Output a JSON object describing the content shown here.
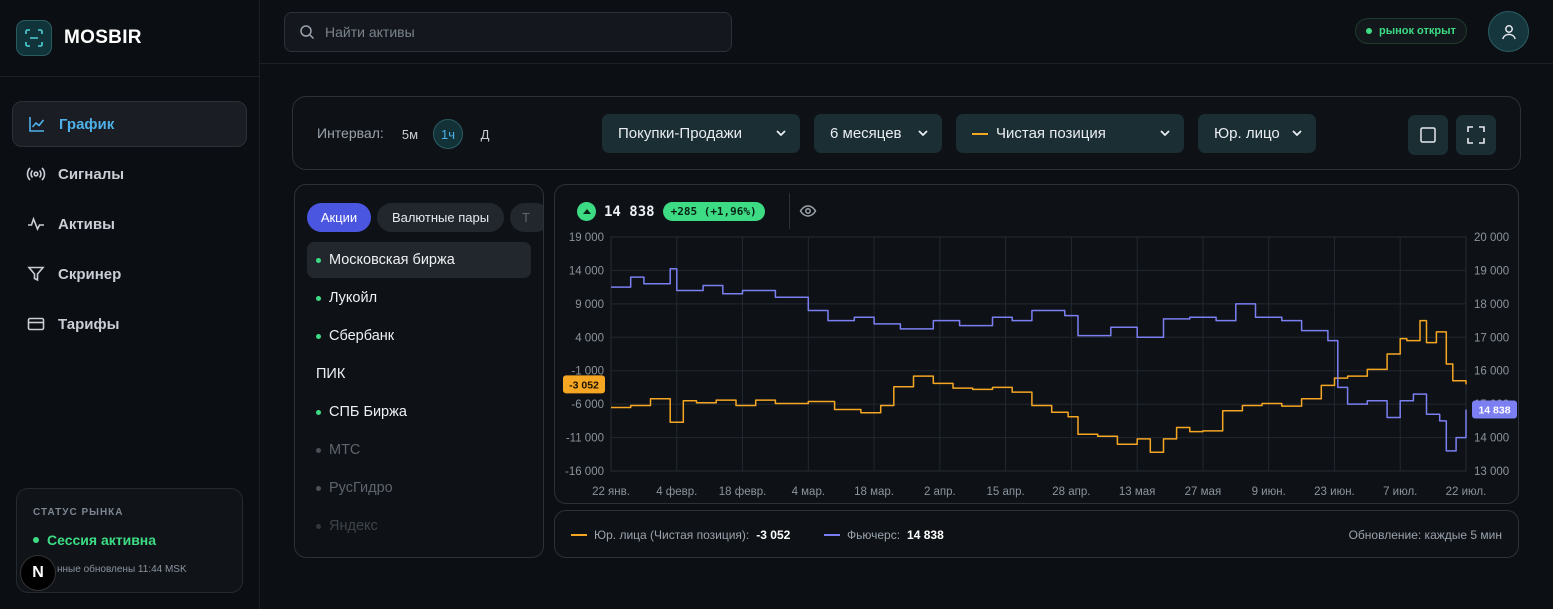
{
  "brand": {
    "name": "MOSBIR"
  },
  "nav": {
    "items": [
      {
        "label": "График",
        "icon": "chart-line-icon"
      },
      {
        "label": "Сигналы",
        "icon": "broadcast-icon"
      },
      {
        "label": "Активы",
        "icon": "pulse-icon"
      },
      {
        "label": "Скринер",
        "icon": "filter-icon"
      },
      {
        "label": "Тарифы",
        "icon": "card-icon"
      }
    ]
  },
  "status": {
    "title": "СТАТУС РЫНКА",
    "state": "Сессия активна",
    "updated": "нные обновлены 11:44 MSK"
  },
  "badge": {
    "letter": "N"
  },
  "search": {
    "placeholder": "Найти активы"
  },
  "market": {
    "label": "рынок открыт"
  },
  "controls": {
    "interval_label": "Интервал:",
    "intervals": [
      "5м",
      "1ч",
      "Д"
    ],
    "active_interval": "1ч",
    "dropdown_type": "Покупки-Продажи",
    "dropdown_period": "6 месяцев",
    "dropdown_metric": "Чистая позиция",
    "dropdown_entity": "Юр. лицо"
  },
  "assets": {
    "tabs": [
      "Акции",
      "Валютные пары",
      "Т"
    ],
    "active_tab": "Акции",
    "items": [
      {
        "name": "Московская биржа",
        "dot": true,
        "dim": false
      },
      {
        "name": "Лукойл",
        "dot": true,
        "dim": false
      },
      {
        "name": "Сбербанк",
        "dot": true,
        "dim": false
      },
      {
        "name": "ПИК",
        "dot": false,
        "dim": false
      },
      {
        "name": "СПБ Биржа",
        "dot": true,
        "dim": false
      },
      {
        "name": "МТС",
        "dot": true,
        "dim": true
      },
      {
        "name": "РусГидро",
        "dot": true,
        "dim": true
      },
      {
        "name": "Яндекс",
        "dot": true,
        "dim": true
      }
    ]
  },
  "price": {
    "value": "14 838",
    "change": "+285 (+1,96%)"
  },
  "legend": {
    "series1_label": "Юр. лица (Чистая позиция):",
    "series1_value": "-3 052",
    "series2_label": "Фьючерс:",
    "series2_value": "14 838",
    "update": "Обновление: каждые 5 мин"
  },
  "colors": {
    "accent": "#4fb0e8",
    "green": "#3ddc84",
    "orange": "#f5a623",
    "futures": "#7b7ff2"
  },
  "chart_data": {
    "type": "line",
    "x_labels": [
      "22 янв.",
      "4 февр.",
      "18 февр.",
      "4 мар.",
      "18 мар.",
      "2 апр.",
      "15 апр.",
      "28 апр.",
      "13 мая",
      "27 мая",
      "9 июн.",
      "23 июн.",
      "7 июл.",
      "22 июл."
    ],
    "left_axis": {
      "ticks": [
        "19 000",
        "14 000",
        "9 000",
        "4 000",
        "-1 000",
        "-6 000",
        "-11 000",
        "-16 000"
      ],
      "ylim": [
        -16000,
        19000
      ]
    },
    "right_axis": {
      "ticks": [
        "20 000",
        "19 000",
        "18 000",
        "17 000",
        "16 000",
        "15 000",
        "14 000",
        "13 000"
      ],
      "ylim": [
        13000,
        20000
      ]
    },
    "grid": true,
    "series": [
      {
        "name": "Юр. лица (Чистая позиция)",
        "axis": "left",
        "color": "#f5a623",
        "last_label": "-3 052",
        "x": [
          0,
          0.3,
          0.6,
          0.9,
          1.1,
          1.3,
          1.6,
          1.9,
          2.2,
          2.5,
          3.0,
          3.4,
          3.8,
          4.1,
          4.3,
          4.6,
          4.9,
          5.2,
          5.5,
          5.8,
          6.1,
          6.4,
          6.7,
          6.95,
          7.1,
          7.4,
          7.7,
          8.0,
          8.2,
          8.4,
          8.6,
          8.8,
          9.0,
          9.3,
          9.6,
          9.9,
          10.2,
          10.5,
          10.8,
          11.0,
          11.2,
          11.5,
          11.8,
          12.0,
          12.1,
          12.3,
          12.4,
          12.55,
          12.7,
          12.8,
          13.0
        ],
        "values": [
          -6500,
          -6200,
          -5200,
          -8700,
          -5500,
          -5800,
          -5400,
          -6200,
          -5400,
          -5900,
          -5600,
          -6800,
          -7300,
          -6200,
          -3400,
          -1800,
          -2900,
          -3600,
          -3800,
          -3500,
          -4200,
          -6200,
          -7200,
          -7900,
          -10500,
          -10800,
          -12000,
          -11200,
          -13200,
          -11200,
          -9500,
          -10100,
          -10000,
          -7000,
          -6200,
          -5900,
          -6300,
          -5200,
          -3200,
          -2100,
          -1800,
          -800,
          1500,
          3800,
          3500,
          6500,
          3200,
          4800,
          0,
          -2500,
          -3052
        ]
      },
      {
        "name": "Фьючерс",
        "axis": "right",
        "color": "#7b7ff2",
        "last_label": "14 838",
        "x": [
          0,
          0.3,
          0.5,
          0.9,
          1.0,
          1.4,
          1.7,
          2.0,
          2.5,
          3.0,
          3.3,
          3.7,
          4.0,
          4.4,
          4.9,
          5.3,
          5.8,
          6.1,
          6.4,
          6.9,
          7.1,
          7.6,
          8.0,
          8.4,
          8.8,
          9.2,
          9.5,
          9.8,
          10.2,
          10.5,
          10.9,
          11.05,
          11.2,
          11.5,
          11.8,
          12.0,
          12.2,
          12.4,
          12.6,
          12.7,
          12.85,
          13.0
        ],
        "values": [
          18500,
          18800,
          18600,
          19050,
          18400,
          18550,
          18300,
          18400,
          18200,
          17800,
          17500,
          17600,
          17400,
          17250,
          17500,
          17350,
          17600,
          17500,
          17800,
          17650,
          17050,
          17300,
          17000,
          17550,
          17600,
          17500,
          18000,
          17600,
          17500,
          17200,
          16900,
          15500,
          15000,
          15100,
          14600,
          15100,
          15300,
          14700,
          14500,
          13600,
          14000,
          14838
        ]
      }
    ]
  }
}
